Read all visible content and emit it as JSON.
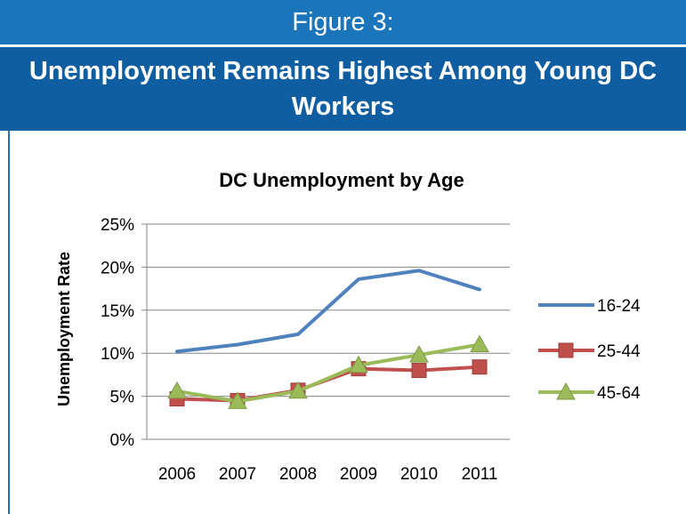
{
  "figure": {
    "label": "Figure 3:",
    "heading": "Unemployment Remains Highest Among Young DC Workers"
  },
  "colors": {
    "header_light": "#1b75bb",
    "header_dark": "#0f5ea2",
    "grid": "#868686"
  },
  "chart_data": {
    "type": "line",
    "title": "DC Unemployment by Age",
    "xlabel": "",
    "ylabel": "Unemployment Rate",
    "x": [
      "2006",
      "2007",
      "2008",
      "2009",
      "2010",
      "2011"
    ],
    "ylim": [
      0,
      25
    ],
    "yticks": [
      0,
      5,
      10,
      15,
      20,
      25
    ],
    "ytick_labels": [
      "0%",
      "5%",
      "10%",
      "15%",
      "20%",
      "25%"
    ],
    "grid": true,
    "legend_position": "right",
    "series": [
      {
        "name": "16-24",
        "color": "#4f81bd",
        "marker": "none",
        "values": [
          10.2,
          11.0,
          12.2,
          18.6,
          19.6,
          17.4
        ]
      },
      {
        "name": "25-44",
        "color": "#c0504d",
        "marker": "square",
        "values": [
          4.7,
          4.5,
          5.7,
          8.2,
          8.0,
          8.4
        ]
      },
      {
        "name": "45-64",
        "color": "#9bbb59",
        "marker": "triangle",
        "values": [
          5.6,
          4.4,
          5.6,
          8.6,
          9.8,
          11.0
        ]
      }
    ]
  }
}
